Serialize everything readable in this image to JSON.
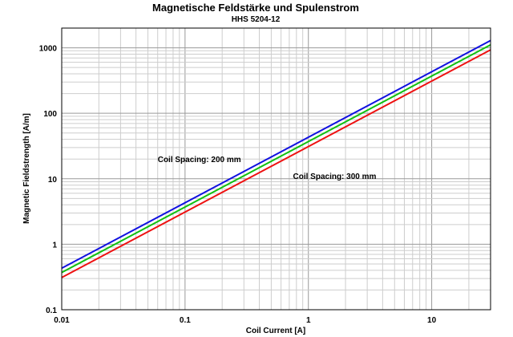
{
  "chart_data": {
    "type": "line",
    "title": "Magnetische Feldstärke und Spulenstrom",
    "subtitle": "HHS 5204-12",
    "xlabel": "Coil Current [A]",
    "ylabel": "Magnetic Fieldstrength [A/m]",
    "xscale": "log",
    "yscale": "log",
    "xlim": [
      0.01,
      30
    ],
    "ylim": [
      0.1,
      2000
    ],
    "grid": true,
    "x_ticks": [
      0.01,
      0.1,
      1,
      10
    ],
    "x_tick_labels": [
      "0.01",
      "0.1",
      "1",
      "10"
    ],
    "y_ticks": [
      0.1,
      1,
      10,
      100,
      1000
    ],
    "y_tick_labels": [
      "0.1",
      "1",
      "10",
      "100",
      "1000"
    ],
    "series": [
      {
        "name": "blue",
        "color": "#1010e0",
        "x": [
          0.01,
          30
        ],
        "y": [
          0.43,
          1290
        ]
      },
      {
        "name": "green",
        "color": "#10c010",
        "x": [
          0.01,
          30
        ],
        "y": [
          0.37,
          1110
        ]
      },
      {
        "name": "red",
        "color": "#ee1111",
        "x": [
          0.01,
          30
        ],
        "y": [
          0.31,
          930
        ]
      }
    ],
    "annotations": [
      {
        "text": "Coil Spacing: 200 mm",
        "x": 0.06,
        "y": 18
      },
      {
        "text": "Coil Spacing: 300 mm",
        "x": 0.75,
        "y": 10
      }
    ]
  }
}
